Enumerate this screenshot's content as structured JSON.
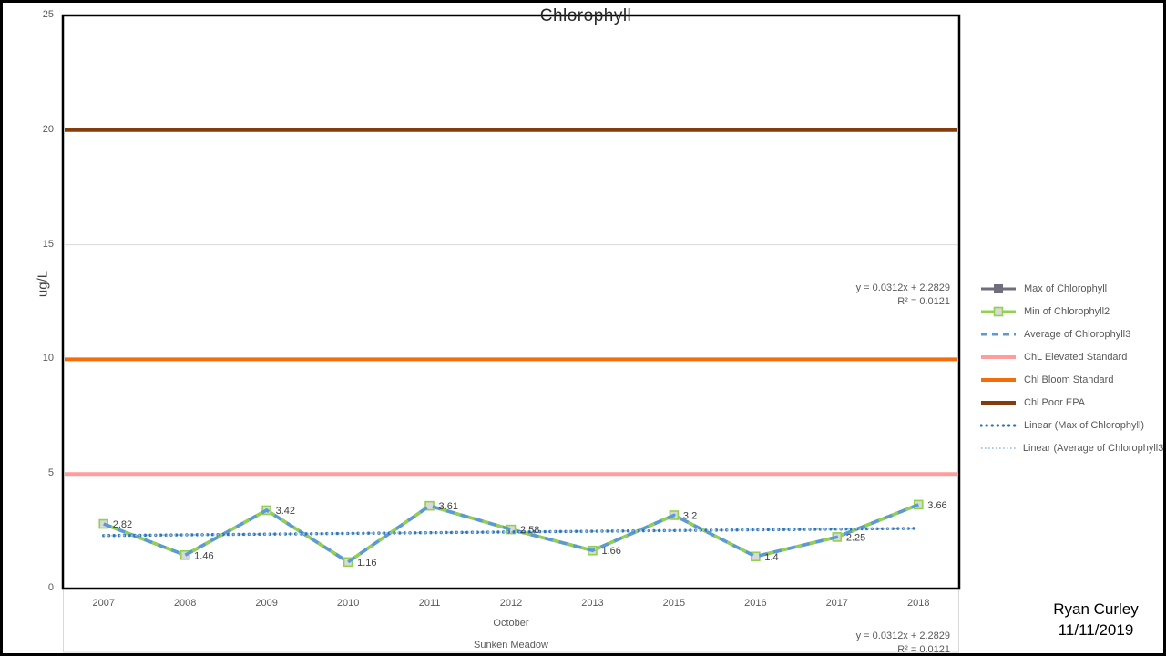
{
  "title": {
    "text": "Chlorophyll"
  },
  "y_axis": {
    "title": "ug/L",
    "ticks": [
      0,
      5,
      10,
      15,
      20,
      25
    ],
    "min": 0,
    "max": 25
  },
  "x_axis": {
    "categories": [
      "2007",
      "2008",
      "2009",
      "2010",
      "2011",
      "2012",
      "2013",
      "2015",
      "2016",
      "2017",
      "2018"
    ],
    "period_label": "October",
    "location_label": "Sunken Meadow"
  },
  "equations": {
    "line1": "y = 0.0312x + 2.2829",
    "line2": "R² = 0.0121"
  },
  "signature": {
    "name": "Ryan Curley",
    "date": "11/11/2019"
  },
  "colors": {
    "max_series": "#716E7B",
    "min_series": "#92D050",
    "avg_series": "#5B9BD5",
    "elevated_standard": "#FF9D9A",
    "bloom_standard": "#F46D0A",
    "poor_epa": "#843C0C",
    "trend_max": "#2E75B6",
    "trend_avg": "#9DC3E6",
    "gridline": "#D9D9D9",
    "marker_fill": "#D9D9D9",
    "label_text": "#595959",
    "data_label_text": "#404040"
  },
  "chart_data": {
    "type": "line",
    "title": "Chlorophyll",
    "ylabel": "ug/L",
    "ylim": [
      0,
      25
    ],
    "gridlines": [
      5,
      10,
      15,
      20
    ],
    "legend_position": "right",
    "x": [
      "2007",
      "2008",
      "2009",
      "2010",
      "2011",
      "2012",
      "2013",
      "2015",
      "2016",
      "2017",
      "2018"
    ],
    "x_sublabels": [
      "October",
      "Sunken Meadow"
    ],
    "data_labels": [
      "2.82",
      "1.46",
      "3.42",
      "1.16",
      "3.61",
      "2.58",
      "1.66",
      "3.2",
      "1.4",
      "2.25",
      "3.66"
    ],
    "trend_equation": "y = 0.0312x + 2.2829",
    "r_squared": "R² = 0.0121",
    "series": [
      {
        "name": "Max of Chlorophyll",
        "kind": "line",
        "style": "solid-marker-gray",
        "color": "#716E7B",
        "values": [
          2.82,
          1.46,
          3.42,
          1.16,
          3.61,
          2.58,
          1.66,
          3.2,
          1.4,
          2.25,
          3.66
        ]
      },
      {
        "name": "Min of Chlorophyll2",
        "kind": "line",
        "style": "solid-marker-green",
        "color": "#92D050",
        "values": [
          2.82,
          1.46,
          3.42,
          1.16,
          3.61,
          2.58,
          1.66,
          3.2,
          1.4,
          2.25,
          3.66
        ]
      },
      {
        "name": "Average of Chlorophyll3",
        "kind": "line",
        "style": "dashed",
        "color": "#5B9BD5",
        "values": [
          2.82,
          1.46,
          3.42,
          1.16,
          3.61,
          2.58,
          1.66,
          3.2,
          1.4,
          2.25,
          3.66
        ]
      },
      {
        "name": "ChL Elevated Standard",
        "kind": "standard",
        "style": "solid-thick",
        "color": "#FF9D9A",
        "value": 5
      },
      {
        "name": "Chl Bloom Standard",
        "kind": "standard",
        "style": "solid-thick",
        "color": "#F46D0A",
        "value": 10
      },
      {
        "name": "Chl Poor EPA",
        "kind": "standard",
        "style": "solid-thick",
        "color": "#843C0C",
        "value": 20
      },
      {
        "name": "Linear (Max of Chlorophyll)",
        "kind": "trend",
        "style": "dots-bold",
        "color": "#2E75B6",
        "slope": 0.0312,
        "intercept": 2.2829
      },
      {
        "name": "Linear (Average of Chlorophyll3)",
        "kind": "trend",
        "style": "dots-fine",
        "color": "#9DC3E6",
        "slope": 0.0312,
        "intercept": 2.2829
      }
    ]
  }
}
